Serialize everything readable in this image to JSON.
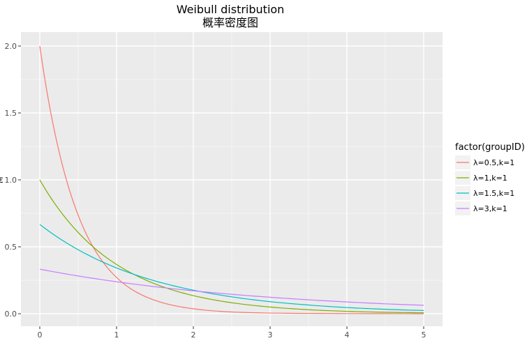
{
  "chart_data": {
    "type": "line",
    "title": "Weibull distribution",
    "subtitle": "概率密度图",
    "xlabel": "",
    "ylabel": "ε",
    "xlim": [
      0,
      5
    ],
    "ylim": [
      0,
      2
    ],
    "x_ticks": [
      "0",
      "1",
      "2",
      "3",
      "4",
      "5"
    ],
    "y_ticks": [
      "0.0",
      "0.5",
      "1.0",
      "1.5",
      "2.0"
    ],
    "grid": true,
    "legend": {
      "title": "factor(groupID)",
      "position": "right"
    },
    "series": [
      {
        "name": "λ=0.5,k=1",
        "color": "#F8766D",
        "x": [
          0,
          0.1,
          0.2,
          0.3,
          0.4,
          0.5,
          0.6,
          0.7,
          0.8,
          1.0,
          1.2,
          1.5,
          2.0,
          2.5,
          3.0,
          4.0,
          5.0
        ],
        "values": [
          2.0,
          1.637,
          1.341,
          1.098,
          0.899,
          0.736,
          0.602,
          0.493,
          0.404,
          0.271,
          0.181,
          0.1,
          0.037,
          0.013,
          0.005,
          0.001,
          0.0
        ]
      },
      {
        "name": "λ=1,k=1",
        "color": "#7CAE00",
        "x": [
          0,
          0.25,
          0.5,
          0.75,
          1.0,
          1.25,
          1.5,
          2.0,
          2.5,
          3.0,
          3.5,
          4.0,
          4.5,
          5.0
        ],
        "values": [
          1.0,
          0.779,
          0.607,
          0.472,
          0.368,
          0.287,
          0.223,
          0.135,
          0.082,
          0.05,
          0.03,
          0.018,
          0.011,
          0.007
        ]
      },
      {
        "name": "λ=1.5,k=1",
        "color": "#00BFC4",
        "x": [
          0,
          0.5,
          1.0,
          1.5,
          2.0,
          2.5,
          3.0,
          3.5,
          4.0,
          4.5,
          5.0
        ],
        "values": [
          0.667,
          0.478,
          0.342,
          0.245,
          0.176,
          0.126,
          0.09,
          0.065,
          0.046,
          0.033,
          0.024
        ]
      },
      {
        "name": "λ=3,k=1",
        "color": "#C77CFF",
        "x": [
          0,
          0.5,
          1.0,
          1.5,
          2.0,
          2.5,
          3.0,
          3.5,
          4.0,
          4.5,
          5.0
        ],
        "values": [
          0.333,
          0.282,
          0.239,
          0.202,
          0.171,
          0.145,
          0.123,
          0.104,
          0.088,
          0.074,
          0.063
        ]
      }
    ]
  }
}
